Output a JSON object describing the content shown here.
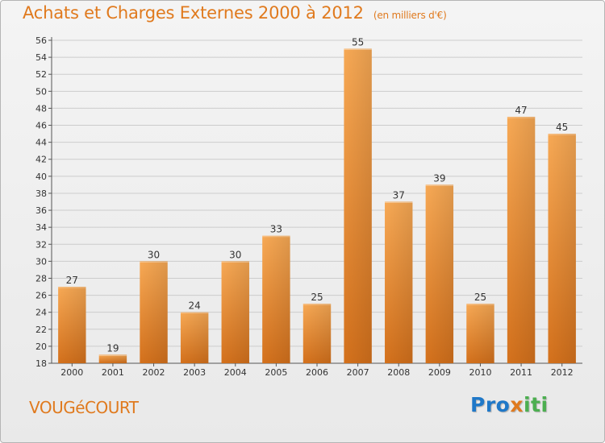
{
  "header": {
    "title": "Achats et Charges Externes 2000 à 2012",
    "subtitle": "(en milliers d'€)"
  },
  "commune": "VOUGéCOURT",
  "logo": {
    "part1": "Pro",
    "part2": "x",
    "part3": "iti"
  },
  "colors": {
    "accent": "#e07a1e",
    "bar_light": "#f5a552",
    "bar_dark": "#d97520",
    "grid": "#cccccc"
  },
  "chart_data": {
    "type": "bar",
    "title": "Achats et Charges Externes 2000 à 2012",
    "subtitle": "(en milliers d'€)",
    "xlabel": "",
    "ylabel": "",
    "categories": [
      "2000",
      "2001",
      "2002",
      "2003",
      "2004",
      "2005",
      "2006",
      "2007",
      "2008",
      "2009",
      "2010",
      "2011",
      "2012"
    ],
    "values": [
      27,
      19,
      30,
      24,
      30,
      33,
      25,
      55,
      37,
      39,
      25,
      47,
      45
    ],
    "ylim": [
      18,
      56
    ],
    "yticks": [
      "18",
      "20",
      "22",
      "24",
      "26",
      "28",
      "30",
      "32",
      "34",
      "36",
      "38",
      "40",
      "42",
      "44",
      "46",
      "48",
      "50",
      "52",
      "54",
      "56"
    ],
    "grid": true,
    "legend": "none"
  }
}
